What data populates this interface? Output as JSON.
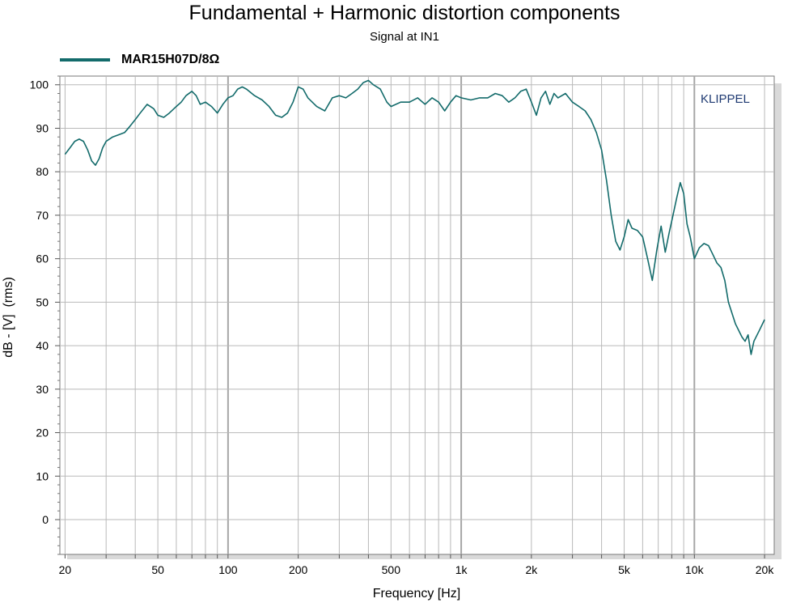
{
  "chart_data": {
    "type": "line",
    "title": "Fundamental + Harmonic distortion components",
    "subtitle": "Signal at IN1",
    "xlabel": "Frequency [Hz]",
    "ylabel": "dB - [V]  (rms)",
    "x_scale": "log",
    "xlim": [
      19,
      22000
    ],
    "ylim": [
      -8,
      102
    ],
    "grid": true,
    "legend_position": "top-left",
    "watermark": "KLIPPEL",
    "x_ticks": [
      {
        "value": 20,
        "label": "20"
      },
      {
        "value": 50,
        "label": "50"
      },
      {
        "value": 100,
        "label": "100"
      },
      {
        "value": 200,
        "label": "200"
      },
      {
        "value": 500,
        "label": "500"
      },
      {
        "value": 1000,
        "label": "1k"
      },
      {
        "value": 2000,
        "label": "2k"
      },
      {
        "value": 5000,
        "label": "5k"
      },
      {
        "value": 10000,
        "label": "10k"
      },
      {
        "value": 20000,
        "label": "20k"
      }
    ],
    "y_ticks": [
      0,
      10,
      20,
      30,
      40,
      50,
      60,
      70,
      80,
      90,
      100
    ],
    "colors": {
      "series": "#136b6b",
      "grid": "#b9b9b9",
      "major_grid": "#a6a6a6",
      "watermark": "#1f3a72"
    },
    "series": [
      {
        "name": "MAR15H07D/8Ω",
        "x": [
          20,
          21,
          22,
          23,
          24,
          25,
          26,
          27,
          28,
          29,
          30,
          32,
          34,
          36,
          38,
          40,
          42,
          45,
          48,
          50,
          53,
          56,
          60,
          63,
          66,
          70,
          73,
          76,
          80,
          85,
          90,
          95,
          100,
          105,
          110,
          115,
          120,
          130,
          140,
          150,
          160,
          170,
          180,
          190,
          200,
          210,
          220,
          240,
          260,
          280,
          300,
          320,
          340,
          360,
          380,
          400,
          420,
          450,
          480,
          500,
          550,
          600,
          650,
          700,
          750,
          800,
          850,
          900,
          950,
          1000,
          1100,
          1200,
          1300,
          1400,
          1500,
          1600,
          1700,
          1800,
          1900,
          2000,
          2100,
          2200,
          2300,
          2400,
          2500,
          2600,
          2800,
          3000,
          3200,
          3400,
          3600,
          3800,
          4000,
          4200,
          4400,
          4600,
          4800,
          5000,
          5200,
          5400,
          5700,
          6000,
          6300,
          6600,
          6900,
          7200,
          7500,
          7800,
          8100,
          8400,
          8700,
          9000,
          9300,
          9600,
          10000,
          10500,
          11000,
          11500,
          12000,
          12500,
          13000,
          13500,
          14000,
          15000,
          16000,
          16500,
          17000,
          17500,
          18000,
          19000,
          20000
        ],
        "values": [
          84,
          85.5,
          87,
          87.5,
          87,
          85,
          82.5,
          81.5,
          83,
          85.5,
          87,
          88,
          88.5,
          89,
          90.5,
          92,
          93.5,
          95.5,
          94.5,
          93,
          92.5,
          93.5,
          95,
          96,
          97.5,
          98.5,
          97.5,
          95.5,
          96,
          95,
          93.5,
          95.5,
          97,
          97.5,
          99,
          99.5,
          99,
          97.5,
          96.5,
          95,
          93,
          92.5,
          93.5,
          96,
          99.5,
          99,
          97,
          95,
          94,
          97,
          97.5,
          97,
          98,
          99,
          100.5,
          101,
          100,
          99,
          96,
          95,
          96,
          96,
          97,
          95.5,
          97,
          96,
          94,
          96,
          97.5,
          97,
          96.5,
          97,
          97,
          98,
          97.5,
          96,
          97,
          98.5,
          99,
          96,
          93,
          97,
          98.5,
          95.5,
          98,
          97,
          98,
          96,
          95,
          94,
          92,
          89,
          85,
          78,
          70,
          64,
          62,
          65,
          69,
          67,
          66.5,
          65,
          60,
          55,
          62,
          67.5,
          61.5,
          66,
          70,
          74,
          77.5,
          75,
          68,
          65,
          60,
          62.5,
          63.5,
          63,
          61,
          59,
          58,
          55,
          50,
          45,
          42,
          41,
          42.5,
          38,
          41,
          43.5,
          46
        ]
      }
    ]
  }
}
